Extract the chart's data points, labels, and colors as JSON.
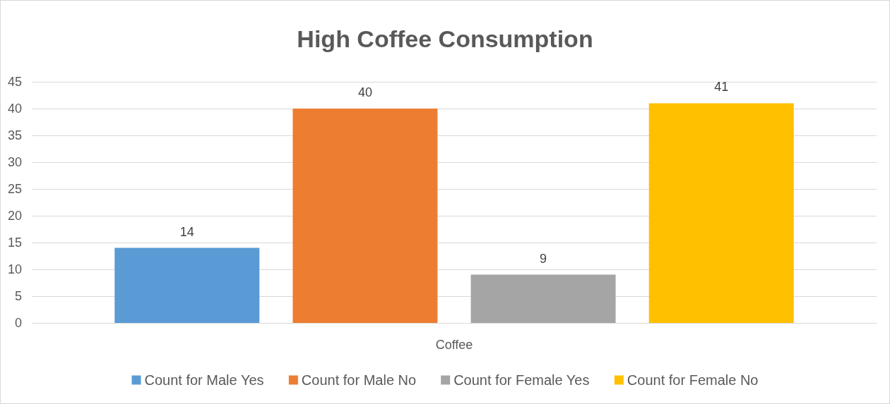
{
  "chart_data": {
    "type": "bar",
    "title": "High Coffee Consumption",
    "categories": [
      "Coffee"
    ],
    "series": [
      {
        "name": "Count for Male Yes",
        "color": "#5b9bd5",
        "values": [
          14
        ]
      },
      {
        "name": "Count for Male No",
        "color": "#ed7d31",
        "values": [
          40
        ]
      },
      {
        "name": "Count for Female Yes",
        "color": "#a5a5a5",
        "values": [
          9
        ]
      },
      {
        "name": "Count for Female No",
        "color": "#ffc000",
        "values": [
          41
        ]
      }
    ],
    "ylim": [
      0,
      45
    ],
    "yticks": [
      0,
      5,
      10,
      15,
      20,
      25,
      30,
      35,
      40,
      45
    ],
    "grid": "y",
    "legend": "bottom",
    "data_labels": true
  }
}
